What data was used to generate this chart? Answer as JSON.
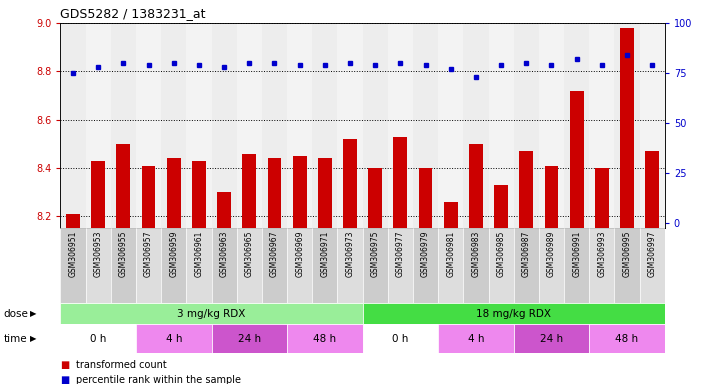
{
  "title": "GDS5282 / 1383231_at",
  "samples": [
    "GSM306951",
    "GSM306953",
    "GSM306955",
    "GSM306957",
    "GSM306959",
    "GSM306961",
    "GSM306963",
    "GSM306965",
    "GSM306967",
    "GSM306969",
    "GSM306971",
    "GSM306973",
    "GSM306975",
    "GSM306977",
    "GSM306979",
    "GSM306981",
    "GSM306983",
    "GSM306985",
    "GSM306987",
    "GSM306989",
    "GSM306991",
    "GSM306993",
    "GSM306995",
    "GSM306997"
  ],
  "bar_values": [
    8.21,
    8.43,
    8.5,
    8.41,
    8.44,
    8.43,
    8.3,
    8.46,
    8.44,
    8.45,
    8.44,
    8.52,
    8.4,
    8.53,
    8.4,
    8.26,
    8.5,
    8.33,
    8.47,
    8.41,
    8.72,
    8.4,
    8.98,
    8.47
  ],
  "dot_values": [
    75,
    78,
    80,
    79,
    80,
    79,
    78,
    80,
    80,
    79,
    79,
    80,
    79,
    80,
    79,
    77,
    73,
    79,
    80,
    79,
    82,
    79,
    84,
    79
  ],
  "ylim_left": [
    8.15,
    9.0
  ],
  "ylim_right": [
    -2.94,
    100
  ],
  "yticks_left": [
    8.2,
    8.4,
    8.6,
    8.8,
    9.0
  ],
  "yticks_right": [
    0,
    25,
    50,
    75,
    100
  ],
  "bar_color": "#CC0000",
  "dot_color": "#0000CC",
  "bg_color": "#FFFFFF",
  "plot_bg": "#FFFFFF",
  "col_bg_even": "#CCCCCC",
  "col_bg_odd": "#DDDDDD",
  "dose_groups": [
    {
      "label": "3 mg/kg RDX",
      "start": 0,
      "end": 12,
      "color": "#99EE99"
    },
    {
      "label": "18 mg/kg RDX",
      "start": 12,
      "end": 24,
      "color": "#44DD44"
    }
  ],
  "time_groups": [
    {
      "label": "0 h",
      "start": 0,
      "end": 3,
      "color": "#FFFFFF"
    },
    {
      "label": "4 h",
      "start": 3,
      "end": 6,
      "color": "#EE88EE"
    },
    {
      "label": "24 h",
      "start": 6,
      "end": 9,
      "color": "#CC55CC"
    },
    {
      "label": "48 h",
      "start": 9,
      "end": 12,
      "color": "#EE88EE"
    },
    {
      "label": "0 h",
      "start": 12,
      "end": 15,
      "color": "#FFFFFF"
    },
    {
      "label": "4 h",
      "start": 15,
      "end": 18,
      "color": "#EE88EE"
    },
    {
      "label": "24 h",
      "start": 18,
      "end": 21,
      "color": "#CC55CC"
    },
    {
      "label": "48 h",
      "start": 21,
      "end": 24,
      "color": "#EE88EE"
    }
  ],
  "legend_items": [
    {
      "label": "transformed count",
      "color": "#CC0000"
    },
    {
      "label": "percentile rank within the sample",
      "color": "#0000CC"
    }
  ]
}
